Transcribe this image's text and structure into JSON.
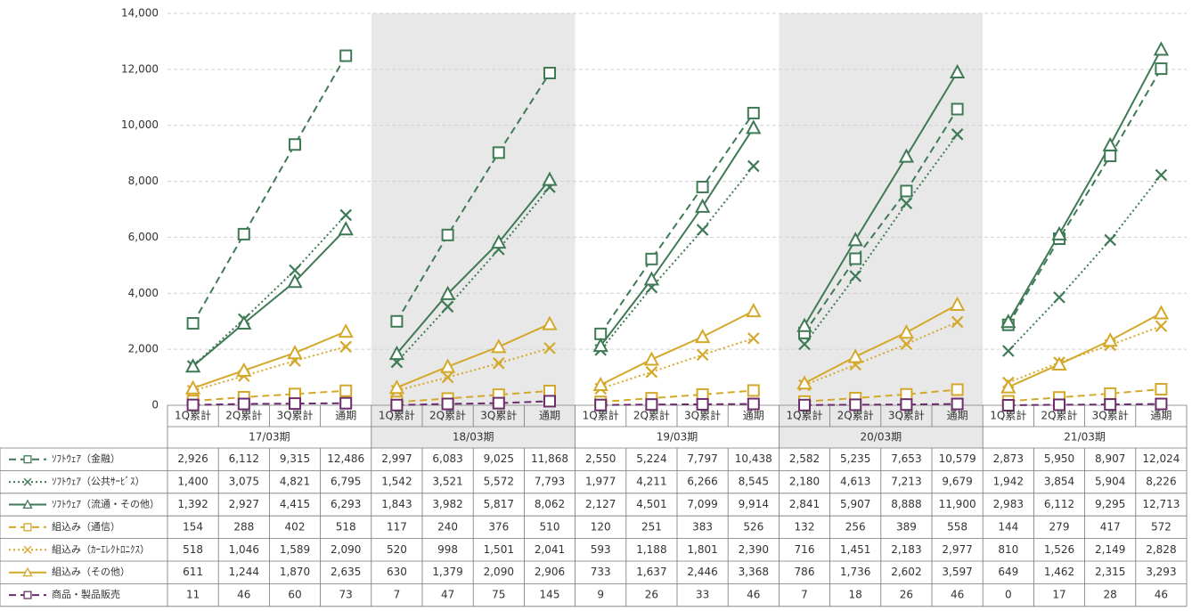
{
  "chart_data": {
    "type": "line",
    "categories": [
      "1Q累計",
      "2Q累計",
      "3Q累計",
      "通期",
      "1Q累計",
      "2Q累計",
      "3Q累計",
      "通期",
      "1Q累計",
      "2Q累計",
      "3Q累計",
      "通期",
      "1Q累計",
      "2Q累計",
      "3Q累計",
      "通期",
      "1Q累計",
      "2Q累計",
      "3Q累計",
      "通期"
    ],
    "groups": [
      {
        "label": "17/03期",
        "shaded": false
      },
      {
        "label": "18/03期",
        "shaded": true
      },
      {
        "label": "19/03期",
        "shaded": false
      },
      {
        "label": "20/03期",
        "shaded": true
      },
      {
        "label": "21/03期",
        "shaded": false
      }
    ],
    "ylim": [
      0,
      14000
    ],
    "yticks": [
      0,
      {
        "value": 2000,
        "label": "2,000"
      },
      {
        "value": 4000,
        "label": "4,000"
      },
      {
        "value": 6000,
        "label": "6,000"
      },
      {
        "value": 8000,
        "label": "8,000"
      },
      {
        "value": 10000,
        "label": "10,000"
      },
      {
        "value": 12000,
        "label": "12,000"
      },
      {
        "value": 14000,
        "label": "14,000"
      }
    ],
    "grid": true,
    "series": [
      {
        "name": "ｿﾌﾄｳｪｱ（金融）",
        "color": "#3f7a55",
        "line_style": "dashed",
        "marker": "square",
        "values": [
          2926,
          6112,
          9315,
          12486,
          2997,
          6083,
          9025,
          11868,
          2550,
          5224,
          7797,
          10438,
          2582,
          5235,
          7653,
          10579,
          2873,
          5950,
          8907,
          12024
        ],
        "value_labels": [
          "2,926",
          "6,112",
          "9,315",
          "12,486",
          "2,997",
          "6,083",
          "9,025",
          "11,868",
          "2,550",
          "5,224",
          "7,797",
          "10,438",
          "2,582",
          "5,235",
          "7,653",
          "10,579",
          "2,873",
          "5,950",
          "8,907",
          "12,024"
        ]
      },
      {
        "name": "ｿﾌﾄｳｪｱ（公共ｻｰﾋﾞｽ）",
        "color": "#3f7a55",
        "line_style": "dotted",
        "marker": "x",
        "values": [
          1400,
          3075,
          4821,
          6795,
          1542,
          3521,
          5572,
          7793,
          1977,
          4211,
          6266,
          8545,
          2180,
          4613,
          7213,
          9679,
          1942,
          3854,
          5904,
          8226
        ],
        "value_labels": [
          "1,400",
          "3,075",
          "4,821",
          "6,795",
          "1,542",
          "3,521",
          "5,572",
          "7,793",
          "1,977",
          "4,211",
          "6,266",
          "8,545",
          "2,180",
          "4,613",
          "7,213",
          "9,679",
          "1,942",
          "3,854",
          "5,904",
          "8,226"
        ]
      },
      {
        "name": "ｿﾌﾄｳｪｱ（流通・その他）",
        "color": "#3f7a55",
        "line_style": "solid",
        "marker": "triangle",
        "values": [
          1392,
          2927,
          4415,
          6293,
          1843,
          3982,
          5817,
          8062,
          2127,
          4501,
          7099,
          9914,
          2841,
          5907,
          8888,
          11900,
          2983,
          6112,
          9295,
          12713
        ],
        "value_labels": [
          "1,392",
          "2,927",
          "4,415",
          "6,293",
          "1,843",
          "3,982",
          "5,817",
          "8,062",
          "2,127",
          "4,501",
          "7,099",
          "9,914",
          "2,841",
          "5,907",
          "8,888",
          "11,900",
          "2,983",
          "6,112",
          "9,295",
          "12,713"
        ]
      },
      {
        "name": "組込み（通信）",
        "color": "#d4a82a",
        "line_style": "dashed",
        "marker": "square",
        "values": [
          154,
          288,
          402,
          518,
          117,
          240,
          376,
          510,
          120,
          251,
          383,
          526,
          132,
          256,
          389,
          558,
          144,
          279,
          417,
          572
        ]
      },
      {
        "name": "組込み（ｶｰｴﾚｸﾄﾛﾆｸｽ）",
        "color": "#d4a82a",
        "line_style": "dotted",
        "marker": "x",
        "values": [
          518,
          1046,
          1589,
          2090,
          520,
          998,
          1501,
          2041,
          593,
          1188,
          1801,
          2390,
          716,
          1451,
          2183,
          2977,
          810,
          1526,
          2149,
          2828
        ],
        "value_labels": [
          "518",
          "1,046",
          "1,589",
          "2,090",
          "520",
          "998",
          "1,501",
          "2,041",
          "593",
          "1,188",
          "1,801",
          "2,390",
          "716",
          "1,451",
          "2,183",
          "2,977",
          "810",
          "1,526",
          "2,149",
          "2,828"
        ]
      },
      {
        "name": "組込み（その他）",
        "color": "#d4a82a",
        "line_style": "solid",
        "marker": "triangle",
        "values": [
          611,
          1244,
          1870,
          2635,
          630,
          1379,
          2090,
          2906,
          733,
          1637,
          2446,
          3368,
          786,
          1736,
          2602,
          3597,
          649,
          1462,
          2315,
          3293
        ],
        "value_labels": [
          "611",
          "1,244",
          "1,870",
          "2,635",
          "630",
          "1,379",
          "2,090",
          "2,906",
          "733",
          "1,637",
          "2,446",
          "3,368",
          "786",
          "1,736",
          "2,602",
          "3,597",
          "649",
          "1,462",
          "2,315",
          "3,293"
        ]
      },
      {
        "name": "商品・製品販売",
        "color": "#6b2d6b",
        "line_style": "dashed",
        "marker": "square",
        "values": [
          11,
          46,
          60,
          73,
          7,
          47,
          75,
          145,
          9,
          26,
          33,
          46,
          7,
          18,
          26,
          46,
          0,
          17,
          28,
          46
        ]
      }
    ]
  }
}
